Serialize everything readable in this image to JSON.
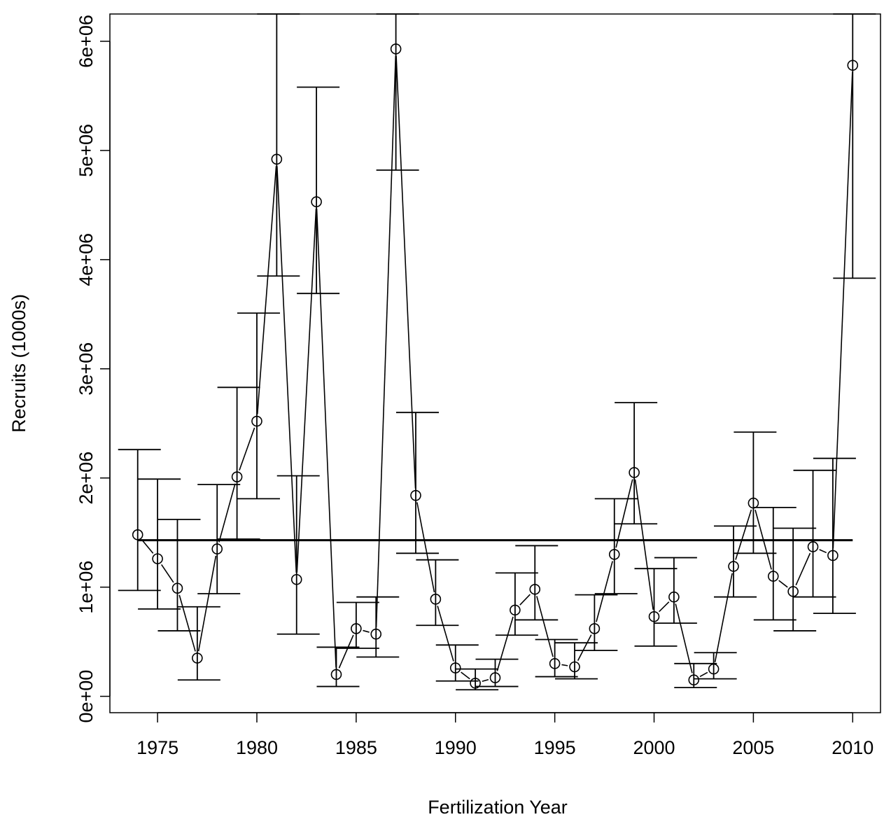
{
  "chart_data": {
    "type": "line",
    "xlabel": "Fertilization Year",
    "ylabel": "Recruits (1000s)",
    "xlim": [
      1972.6,
      2011.4
    ],
    "ylim": [
      -150000,
      6250000
    ],
    "x_ticks": [
      1975,
      1980,
      1985,
      1990,
      1995,
      2000,
      2005,
      2010
    ],
    "x_tick_labels": [
      "1975",
      "1980",
      "1985",
      "1990",
      "1995",
      "2000",
      "2005",
      "2010"
    ],
    "y_ticks": [
      0,
      1000000,
      2000000,
      3000000,
      4000000,
      5000000,
      6000000
    ],
    "y_tick_labels": [
      "0e+00",
      "1e+06",
      "2e+06",
      "3e+06",
      "4e+06",
      "5e+06",
      "6e+06"
    ],
    "grid": false,
    "reference_line": 1430000,
    "series": [
      {
        "x": [
          1974,
          1975,
          1976,
          1977,
          1978,
          1979,
          1980,
          1981,
          1982,
          1983,
          1984,
          1985,
          1986,
          1987,
          1988,
          1989,
          1990,
          1991,
          1992,
          1993,
          1994,
          1995,
          1996,
          1997,
          1998,
          1999,
          2000,
          2001,
          2002,
          2003,
          2004,
          2005,
          2006,
          2007,
          2008,
          2009,
          2010
        ],
        "y": [
          1480000,
          1260000,
          990000,
          350000,
          1350000,
          2010000,
          2520000,
          4920000,
          1070000,
          4530000,
          200000,
          620000,
          570000,
          5930000,
          1840000,
          890000,
          260000,
          120000,
          170000,
          790000,
          980000,
          300000,
          270000,
          620000,
          1300000,
          2050000,
          730000,
          910000,
          150000,
          250000,
          1190000,
          1770000,
          1100000,
          960000,
          1370000,
          1290000,
          5780000
        ],
        "lower": [
          970000,
          800000,
          600000,
          150000,
          940000,
          1440000,
          1810000,
          3850000,
          570000,
          3690000,
          90000,
          440000,
          360000,
          4820000,
          1310000,
          650000,
          140000,
          60000,
          90000,
          560000,
          700000,
          180000,
          160000,
          420000,
          940000,
          1580000,
          460000,
          670000,
          80000,
          160000,
          910000,
          1310000,
          700000,
          600000,
          910000,
          760000,
          3830000
        ],
        "upper": [
          2260000,
          1990000,
          1620000,
          820000,
          1940000,
          2830000,
          3510000,
          6250000,
          2020000,
          5580000,
          450000,
          860000,
          910000,
          6250000,
          2600000,
          1250000,
          470000,
          250000,
          340000,
          1130000,
          1380000,
          520000,
          490000,
          930000,
          1810000,
          2690000,
          1170000,
          1270000,
          300000,
          400000,
          1560000,
          2420000,
          1730000,
          1540000,
          2070000,
          2180000,
          6250000
        ]
      }
    ]
  }
}
